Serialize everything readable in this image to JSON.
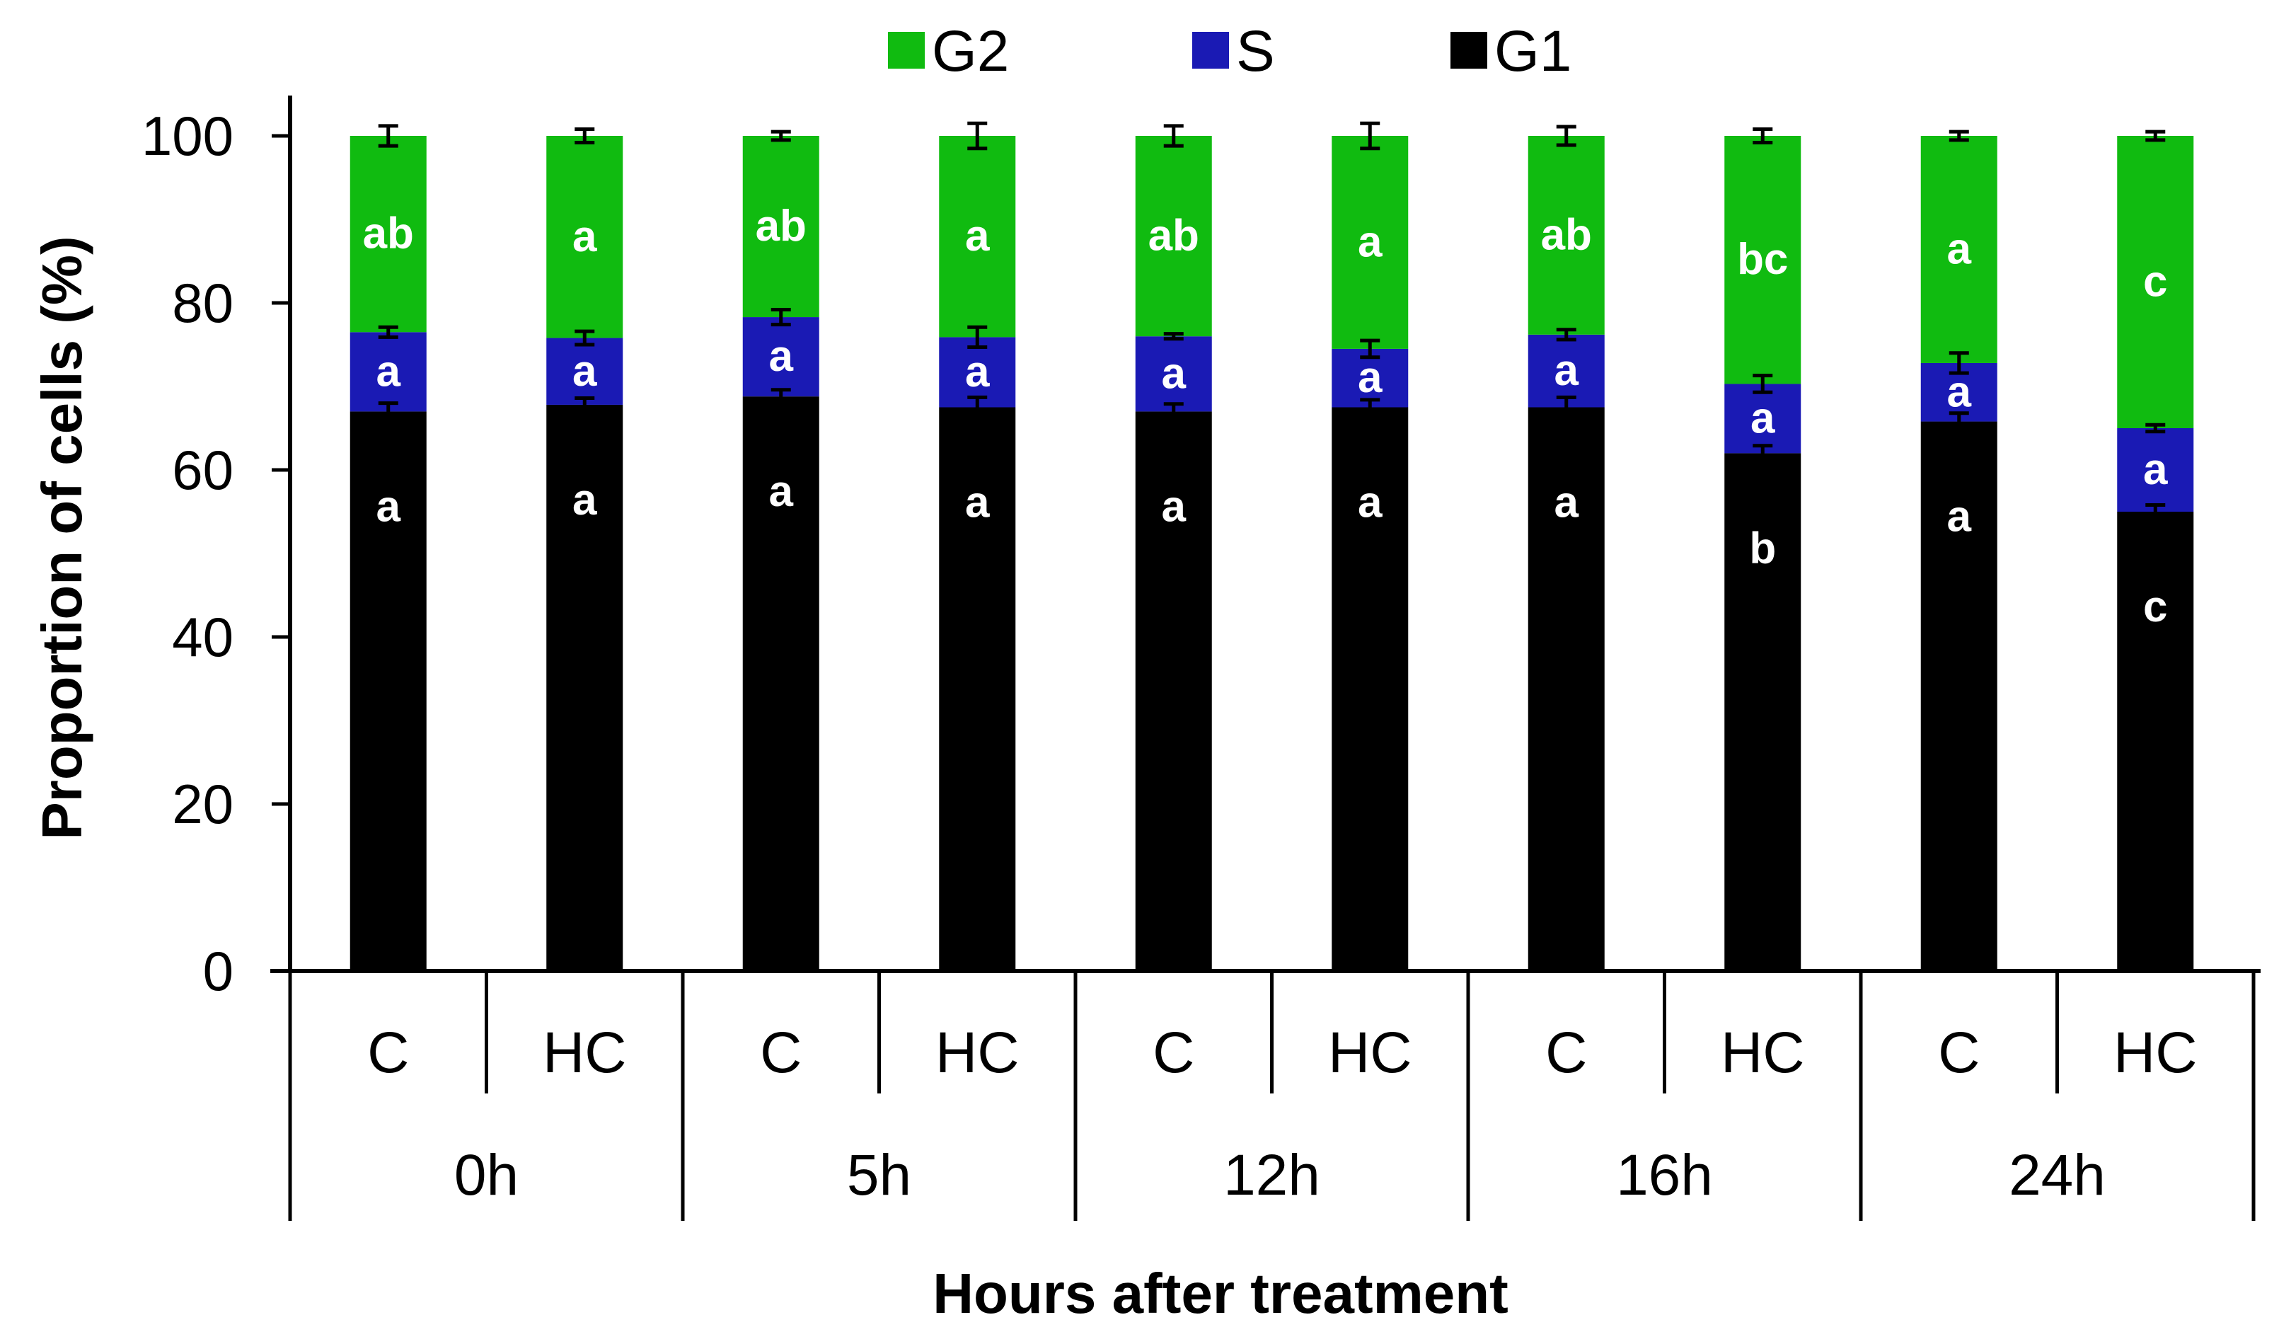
{
  "chart_data": {
    "type": "bar",
    "stacked": true,
    "title": "",
    "xlabel": "Hours after treatment",
    "ylabel": "Proportion of cells (%)",
    "ylim": [
      0,
      100
    ],
    "yticks": [
      0,
      20,
      40,
      60,
      80,
      100
    ],
    "groups": [
      "0h",
      "5h",
      "12h",
      "16h",
      "24h"
    ],
    "categories": [
      "C",
      "HC",
      "C",
      "HC",
      "C",
      "HC",
      "C",
      "HC",
      "C",
      "HC"
    ],
    "series": [
      {
        "name": "G1",
        "color": "#000000",
        "values": [
          67.0,
          67.8,
          68.8,
          67.5,
          67.0,
          67.5,
          67.5,
          62.0,
          65.8,
          55.0
        ],
        "errors": [
          1.0,
          0.8,
          0.8,
          1.2,
          0.9,
          0.9,
          1.2,
          0.9,
          1.0,
          0.8
        ],
        "labels": [
          "a",
          "a",
          "a",
          "a",
          "a",
          "a",
          "a",
          "b",
          "a",
          "c"
        ]
      },
      {
        "name": "S",
        "color": "#1a1ab4",
        "values": [
          9.5,
          8.0,
          9.5,
          8.4,
          9.0,
          7.0,
          8.7,
          8.3,
          7.0,
          10.0
        ],
        "errors": [
          0.6,
          0.8,
          0.9,
          1.2,
          0.3,
          1.0,
          0.6,
          1.0,
          1.2,
          0.4
        ],
        "labels": [
          "a",
          "a",
          "a",
          "a",
          "a",
          "a",
          "a",
          "a",
          "a",
          "a"
        ]
      },
      {
        "name": "G2",
        "color": "#10bb10",
        "values": [
          23.5,
          24.2,
          21.7,
          24.1,
          24.0,
          25.5,
          23.8,
          29.7,
          27.2,
          35.0
        ],
        "errors": [
          1.2,
          0.8,
          0.5,
          1.5,
          1.2,
          1.5,
          1.1,
          0.8,
          0.5,
          0.5
        ],
        "labels": [
          "ab",
          "a",
          "ab",
          "a",
          "ab",
          "a",
          "ab",
          "bc",
          "a",
          "c"
        ]
      }
    ],
    "legend": {
      "position": "top-center",
      "order": [
        "G2",
        "S",
        "G1"
      ]
    }
  }
}
